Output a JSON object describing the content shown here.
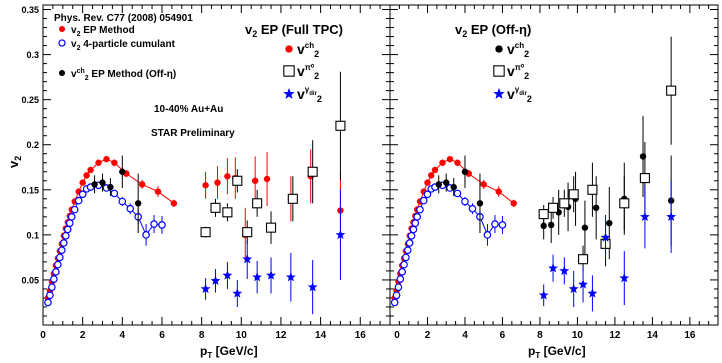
{
  "figure": {
    "ylabel_main": "v",
    "ylabel_sub": "2",
    "xlabel_main": "p",
    "xlabel_sub": "T",
    "xlabel_unit": " [GeV/c]",
    "y_tick_labels": [
      "0.05",
      "0.1",
      "0.15",
      "0.2",
      "0.25",
      "0.3",
      "0.35"
    ],
    "x_tick_labels": [
      "0",
      "2",
      "4",
      "6",
      "8",
      "10",
      "12",
      "14",
      "16"
    ]
  },
  "chart_data": [
    {
      "type": "scatter",
      "panel": "left",
      "title": "v2 EP (Full TPC)",
      "title_main": "v",
      "title_sub": "2",
      "title_rest": " EP (Full TPC)",
      "xlim": [
        0,
        17.5
      ],
      "ylim": [
        0,
        0.355
      ],
      "annotations": {
        "publication": "Phys. Rev. C77 (2008) 054901",
        "system": "10-40% Au+Au",
        "status": "STAR Preliminary"
      },
      "legend_left": [
        {
          "marker": "filled-circle",
          "color": "#ff0000",
          "pre": "v",
          "sub": "2",
          "rest": " EP Method"
        },
        {
          "marker": "open-circle",
          "color": "#0000ff",
          "pre": "v",
          "sub": "2",
          "rest": " 4-particle cumulant"
        },
        {
          "marker": "filled-circle",
          "color": "#000000",
          "pre": "v",
          "sub": "2",
          "sup": "ch",
          "rest": " EP Method (Off-η)"
        }
      ],
      "legend_right": [
        {
          "marker": "filled-circle",
          "color": "#ff0000",
          "sub": "2",
          "sup": "ch"
        },
        {
          "marker": "open-square",
          "color": "#000000",
          "sub": "2",
          "sup": "π⁰"
        },
        {
          "marker": "star",
          "color": "#0000ff",
          "sub": "2",
          "sup": "γ",
          "sup_sub": "dir"
        }
      ],
      "series": [
        {
          "name": "v2 EP Method",
          "marker": "filled-circle",
          "color": "#ff0000",
          "connect": true,
          "x": [
            0.25,
            0.35,
            0.45,
            0.55,
            0.65,
            0.75,
            0.85,
            0.95,
            1.05,
            1.15,
            1.25,
            1.35,
            1.45,
            1.6,
            1.8,
            2.0,
            2.2,
            2.4,
            2.8,
            3.2,
            3.6,
            4.2,
            5.0,
            5.8,
            6.6
          ],
          "y": [
            0.03,
            0.038,
            0.048,
            0.057,
            0.066,
            0.074,
            0.082,
            0.09,
            0.099,
            0.107,
            0.114,
            0.121,
            0.128,
            0.137,
            0.148,
            0.158,
            0.166,
            0.172,
            0.18,
            0.184,
            0.18,
            0.168,
            0.156,
            0.148,
            0.135
          ],
          "err": [
            0,
            0,
            0,
            0,
            0,
            0,
            0,
            0,
            0,
            0,
            0,
            0,
            0,
            0,
            0,
            0,
            0,
            0,
            0,
            0,
            0,
            0.004,
            0.005,
            0.006,
            0.004
          ]
        },
        {
          "name": "v2 4-particle cumulant",
          "marker": "open-circle",
          "color": "#0000ff",
          "connect": true,
          "x": [
            0.25,
            0.35,
            0.45,
            0.55,
            0.65,
            0.75,
            0.85,
            0.95,
            1.05,
            1.15,
            1.25,
            1.35,
            1.45,
            1.6,
            1.8,
            2.0,
            2.2,
            2.4,
            2.8,
            3.2,
            3.6,
            4.0,
            4.4,
            4.8,
            5.2,
            5.6,
            6.0
          ],
          "y": [
            0.025,
            0.033,
            0.042,
            0.051,
            0.059,
            0.067,
            0.075,
            0.083,
            0.091,
            0.099,
            0.106,
            0.113,
            0.12,
            0.128,
            0.138,
            0.145,
            0.151,
            0.153,
            0.155,
            0.152,
            0.146,
            0.137,
            0.129,
            0.12,
            0.1,
            0.112,
            0.111
          ],
          "err": [
            0,
            0,
            0,
            0,
            0,
            0,
            0,
            0,
            0,
            0,
            0,
            0,
            0,
            0,
            0,
            0,
            0,
            0,
            0,
            0,
            0,
            0.005,
            0.006,
            0.008,
            0.012,
            0.01,
            0.01
          ]
        },
        {
          "name": "v2ch EP Method (Off-eta)",
          "marker": "filled-circle",
          "color": "#000000",
          "connect": false,
          "x": [
            2.6,
            3.0,
            3.4,
            4.0,
            4.8
          ],
          "y": [
            0.156,
            0.158,
            0.153,
            0.17,
            0.135
          ],
          "err": [
            0.01,
            0.01,
            0.01,
            0.018,
            0.033
          ]
        },
        {
          "name": "v2ch",
          "marker": "filled-circle",
          "color": "#ff0000",
          "connect": false,
          "x": [
            8.2,
            8.8,
            9.3,
            9.7,
            10.2,
            10.7,
            11.3,
            12.5,
            13.5,
            15.0
          ],
          "y": [
            0.155,
            0.158,
            0.165,
            0.163,
            0.1,
            0.16,
            0.162,
            0.14,
            0.165,
            0.127
          ],
          "err": [
            0.015,
            0.018,
            0.02,
            0.023,
            0.03,
            0.027,
            0.03,
            0.025,
            0.03,
            0.04
          ]
        },
        {
          "name": "v2pi0",
          "marker": "open-square",
          "color": "#000000",
          "connect": false,
          "x": [
            8.2,
            8.7,
            9.3,
            9.8,
            10.3,
            10.8,
            11.5,
            12.6,
            13.6,
            15.0
          ],
          "y": [
            0.103,
            0.13,
            0.125,
            0.16,
            0.103,
            0.135,
            0.108,
            0.14,
            0.17,
            0.221
          ],
          "err": [
            0.006,
            0.01,
            0.01,
            0.013,
            0.013,
            0.015,
            0.018,
            0.025,
            0.035,
            0.06
          ]
        },
        {
          "name": "v2gamma_dir",
          "marker": "star",
          "color": "#0000ff",
          "connect": false,
          "x": [
            8.2,
            8.7,
            9.3,
            9.8,
            10.3,
            10.8,
            11.5,
            12.5,
            13.6,
            15.0
          ],
          "y": [
            0.04,
            0.049,
            0.055,
            0.035,
            0.073,
            0.053,
            0.055,
            0.053,
            0.042,
            0.1
          ],
          "err": [
            0.012,
            0.013,
            0.015,
            0.015,
            0.022,
            0.018,
            0.02,
            0.027,
            0.03,
            0.05
          ]
        }
      ]
    },
    {
      "type": "scatter",
      "panel": "right",
      "title": "v2 EP (Off-η)",
      "title_main": "v",
      "title_sub": "2",
      "title_rest": " EP (Off-η)",
      "xlim": [
        0,
        17.5
      ],
      "ylim": [
        0,
        0.355
      ],
      "legend_right": [
        {
          "marker": "filled-circle",
          "color": "#000000",
          "sub": "2",
          "sup": "ch"
        },
        {
          "marker": "open-square",
          "color": "#000000",
          "sub": "2",
          "sup": "π⁰"
        },
        {
          "marker": "star",
          "color": "#0000ff",
          "sub": "2",
          "sup": "γ",
          "sup_sub": "dir"
        }
      ],
      "series": [
        {
          "name": "v2 EP Method",
          "marker": "filled-circle",
          "color": "#ff0000",
          "connect": true,
          "x": [
            0.25,
            0.35,
            0.45,
            0.55,
            0.65,
            0.75,
            0.85,
            0.95,
            1.05,
            1.15,
            1.25,
            1.35,
            1.45,
            1.6,
            1.8,
            2.0,
            2.2,
            2.4,
            2.8,
            3.2,
            3.6,
            4.2,
            5.0,
            5.8,
            6.6
          ],
          "y": [
            0.03,
            0.038,
            0.048,
            0.057,
            0.066,
            0.074,
            0.082,
            0.09,
            0.099,
            0.107,
            0.114,
            0.121,
            0.128,
            0.137,
            0.148,
            0.158,
            0.166,
            0.172,
            0.18,
            0.184,
            0.18,
            0.168,
            0.156,
            0.148,
            0.135
          ],
          "err": [
            0,
            0,
            0,
            0,
            0,
            0,
            0,
            0,
            0,
            0,
            0,
            0,
            0,
            0,
            0,
            0,
            0,
            0,
            0,
            0,
            0,
            0.004,
            0.005,
            0.006,
            0.004
          ]
        },
        {
          "name": "v2 4-particle cumulant",
          "marker": "open-circle",
          "color": "#0000ff",
          "connect": true,
          "x": [
            0.25,
            0.35,
            0.45,
            0.55,
            0.65,
            0.75,
            0.85,
            0.95,
            1.05,
            1.15,
            1.25,
            1.35,
            1.45,
            1.6,
            1.8,
            2.0,
            2.2,
            2.4,
            2.8,
            3.2,
            3.6,
            4.0,
            4.4,
            4.8,
            5.2,
            5.6,
            6.0
          ],
          "y": [
            0.025,
            0.033,
            0.042,
            0.051,
            0.059,
            0.067,
            0.075,
            0.083,
            0.091,
            0.099,
            0.106,
            0.113,
            0.12,
            0.128,
            0.138,
            0.145,
            0.151,
            0.153,
            0.155,
            0.152,
            0.146,
            0.137,
            0.129,
            0.12,
            0.1,
            0.112,
            0.111
          ],
          "err": [
            0,
            0,
            0,
            0,
            0,
            0,
            0,
            0,
            0,
            0,
            0,
            0,
            0,
            0,
            0,
            0,
            0,
            0,
            0,
            0,
            0,
            0.005,
            0.006,
            0.008,
            0.012,
            0.01,
            0.01
          ]
        },
        {
          "name": "v2ch EP Method (Off-eta)",
          "marker": "filled-circle",
          "color": "#000000",
          "connect": false,
          "x": [
            2.6,
            3.0,
            3.4,
            4.0,
            4.8
          ],
          "y": [
            0.156,
            0.158,
            0.153,
            0.17,
            0.135
          ],
          "err": [
            0.01,
            0.01,
            0.01,
            0.018,
            0.033
          ]
        },
        {
          "name": "v2ch",
          "marker": "filled-circle",
          "color": "#000000",
          "connect": false,
          "x": [
            8.2,
            8.6,
            9.0,
            9.5,
            9.9,
            10.4,
            11.0,
            11.7,
            12.5,
            13.5,
            15.0
          ],
          "y": [
            0.11,
            0.111,
            0.125,
            0.131,
            0.14,
            0.108,
            0.13,
            0.113,
            0.14,
            0.187,
            0.138
          ],
          "err": [
            0.015,
            0.02,
            0.025,
            0.027,
            0.03,
            0.03,
            0.035,
            0.04,
            0.04,
            0.045,
            0.05
          ]
        },
        {
          "name": "v2pi0",
          "marker": "open-square",
          "color": "#000000",
          "connect": false,
          "x": [
            8.2,
            8.7,
            9.3,
            9.8,
            10.3,
            10.8,
            11.5,
            12.5,
            13.6,
            15.0
          ],
          "y": [
            0.123,
            0.13,
            0.135,
            0.145,
            0.073,
            0.15,
            0.09,
            0.135,
            0.163,
            0.26
          ],
          "err": [
            0.01,
            0.012,
            0.015,
            0.02,
            0.015,
            0.03,
            0.025,
            0.03,
            0.04,
            0.06
          ]
        },
        {
          "name": "v2gamma_dir",
          "marker": "star",
          "color": "#0000ff",
          "connect": false,
          "x": [
            8.2,
            8.7,
            9.3,
            9.8,
            10.3,
            10.8,
            11.5,
            12.5,
            13.6,
            15.0
          ],
          "y": [
            0.033,
            0.063,
            0.06,
            0.04,
            0.045,
            0.035,
            0.097,
            0.052,
            0.12,
            0.12
          ],
          "err": [
            0.012,
            0.015,
            0.015,
            0.02,
            0.02,
            0.02,
            0.025,
            0.03,
            0.035,
            0.04
          ]
        }
      ]
    }
  ]
}
